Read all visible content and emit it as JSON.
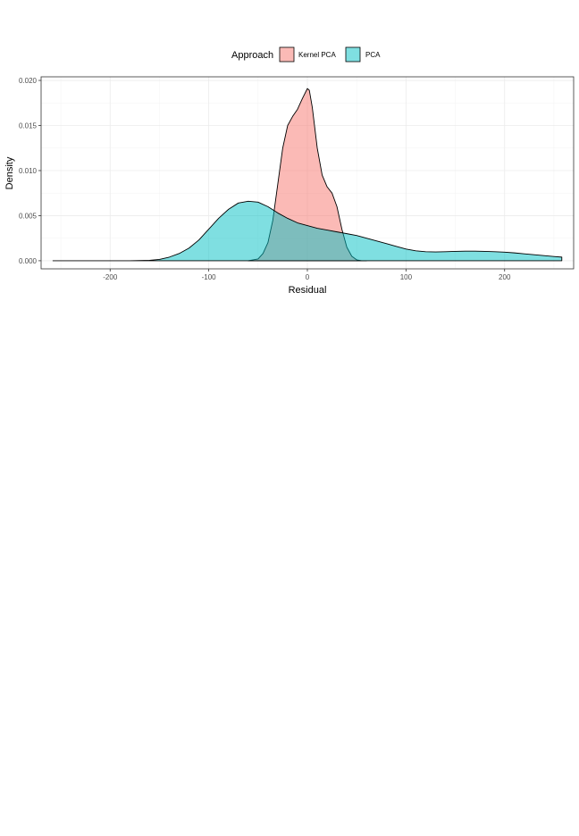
{
  "chart_data": {
    "type": "area",
    "subtype": "density",
    "title": "",
    "xlabel": "Residual",
    "ylabel": "Density",
    "xlim": [
      -270,
      270
    ],
    "ylim": [
      -0.0009,
      0.0204
    ],
    "x_ticks": [
      -200,
      -100,
      0,
      100,
      200
    ],
    "x_tick_labels": [
      "-200",
      "-100",
      "0",
      "100",
      "200"
    ],
    "x_minor_ticks": [
      -250,
      -150,
      -50,
      50,
      150,
      250
    ],
    "y_ticks": [
      0,
      0.005,
      0.01,
      0.015,
      0.02
    ],
    "y_tick_labels": [
      "0.000",
      "0.005",
      "0.010",
      "0.015",
      "0.020"
    ],
    "y_minor_ticks": [
      0.0025,
      0.0075,
      0.0125,
      0.0175
    ],
    "grid": true,
    "legend": {
      "title": "Approach",
      "position": "top"
    },
    "series": [
      {
        "name": "Kernel PCA",
        "color": "#F8766D",
        "x": [
          -60,
          -50,
          -45,
          -40,
          -35,
          -30,
          -25,
          -20,
          -15,
          -10,
          -5,
          0,
          2,
          5,
          10,
          15,
          20,
          25,
          30,
          35,
          40,
          45,
          50,
          55,
          60
        ],
        "y": [
          0.0,
          0.0002,
          0.0008,
          0.002,
          0.0045,
          0.0085,
          0.0125,
          0.015,
          0.016,
          0.0168,
          0.018,
          0.0191,
          0.0189,
          0.017,
          0.0125,
          0.0095,
          0.0082,
          0.0075,
          0.006,
          0.0035,
          0.0015,
          0.0005,
          0.0001,
          0.0,
          0.0
        ]
      },
      {
        "name": "PCA",
        "color": "#00BFC4",
        "x": [
          -258,
          -230,
          -200,
          -180,
          -160,
          -150,
          -140,
          -130,
          -120,
          -110,
          -100,
          -90,
          -80,
          -70,
          -60,
          -50,
          -40,
          -30,
          -20,
          -10,
          0,
          10,
          20,
          30,
          40,
          50,
          60,
          70,
          80,
          90,
          100,
          110,
          120,
          130,
          140,
          150,
          160,
          170,
          180,
          190,
          200,
          210,
          220,
          230,
          240,
          250,
          258
        ],
        "y": [
          0.0,
          0.0,
          0.0,
          0.0,
          5e-05,
          0.00015,
          0.0004,
          0.0008,
          0.0014,
          0.0023,
          0.0035,
          0.0047,
          0.0057,
          0.0064,
          0.0066,
          0.0065,
          0.006,
          0.0053,
          0.0047,
          0.0042,
          0.0039,
          0.0036,
          0.0034,
          0.0032,
          0.003,
          0.0028,
          0.0025,
          0.0022,
          0.0019,
          0.0016,
          0.0013,
          0.0011,
          0.001,
          0.00098,
          0.001,
          0.00104,
          0.00106,
          0.00106,
          0.00104,
          0.001,
          0.00095,
          0.00087,
          0.00077,
          0.00067,
          0.00057,
          0.00047,
          0.0004
        ]
      }
    ]
  }
}
